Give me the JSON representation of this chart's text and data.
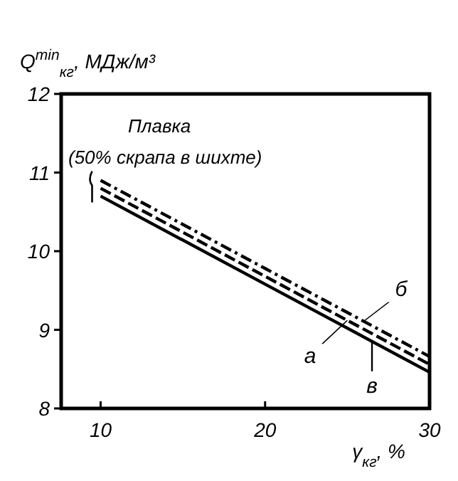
{
  "chart_data": {
    "type": "line",
    "xlabel": "γ$_{кг}$, %",
    "ylabel": "Q$^{min}$$_{кг}$, МДж/м³",
    "annotations": [
      "Плавка",
      "(50% скрапа в шихте)"
    ],
    "series": [
      {
        "name": "а",
        "color": "#000000",
        "line_style": "dashed",
        "x": [
          10,
          20,
          30
        ],
        "values": [
          10.8,
          9.68,
          8.56
        ]
      },
      {
        "name": "б",
        "color": "#000000",
        "line_style": "dashdot",
        "x": [
          10,
          20,
          30
        ],
        "values": [
          10.9,
          9.78,
          8.66
        ]
      },
      {
        "name": "в",
        "color": "#000000",
        "line_style": "solid",
        "x": [
          10,
          20,
          30
        ],
        "values": [
          10.7,
          9.58,
          8.46
        ]
      }
    ],
    "xlim": [
      7.6,
      30
    ],
    "xticks": [
      10,
      20,
      30
    ],
    "ylim": [
      8,
      12
    ],
    "yticks": [
      8,
      9,
      10,
      11,
      12
    ],
    "grid": false,
    "legend": "bottom right",
    "marker": "none"
  }
}
